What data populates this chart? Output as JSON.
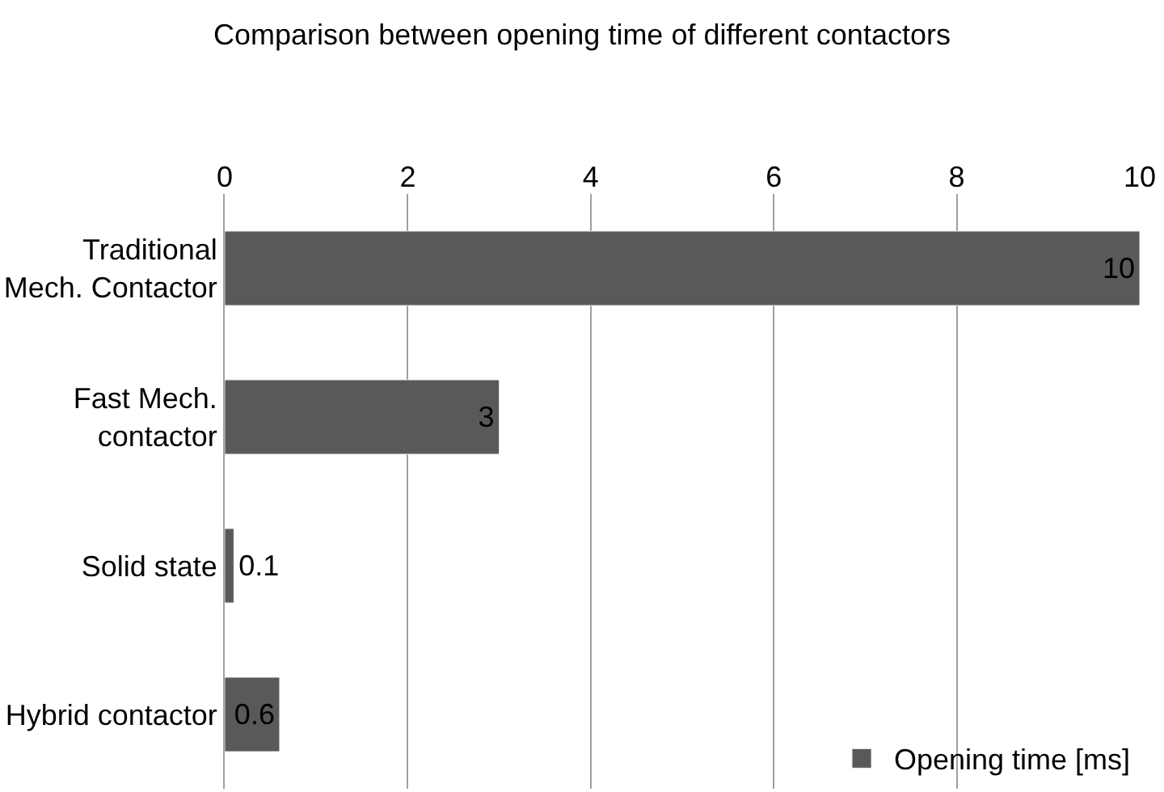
{
  "chart_data": {
    "type": "bar",
    "orientation": "horizontal",
    "title": "Comparison between opening time of different contactors",
    "categories": [
      "Traditional Mech. Contactor",
      "Fast Mech. contactor",
      "Solid state",
      "Hybrid contactor"
    ],
    "series": [
      {
        "name": "Opening time [ms]",
        "color": "#595959",
        "values": [
          10,
          3,
          0.1,
          0.6
        ]
      }
    ],
    "xlim": [
      0,
      10
    ],
    "xticks": [
      0,
      2,
      4,
      6,
      8,
      10
    ],
    "grid": "x",
    "legend": "bottom right",
    "data_labels": true
  }
}
